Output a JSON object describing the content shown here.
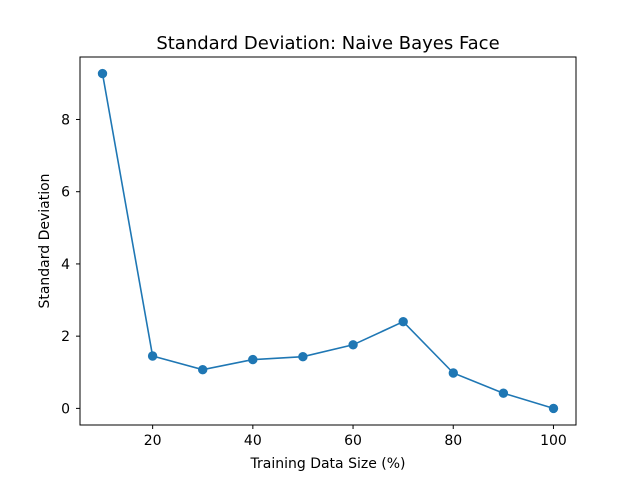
{
  "chart_data": {
    "type": "line",
    "title": "Standard Deviation: Naive Bayes Face",
    "xlabel": "Training Data Size (%)",
    "ylabel": "Standard Deviation",
    "x": [
      10,
      20,
      30,
      40,
      50,
      60,
      70,
      80,
      90,
      100
    ],
    "series": [
      {
        "values": [
          9.27,
          1.45,
          1.07,
          1.35,
          1.43,
          1.76,
          2.4,
          0.98,
          0.42,
          0.0
        ],
        "color": "#1f77b4",
        "marker": "circle"
      }
    ],
    "xlim": [
      5.5,
      104.5
    ],
    "ylim": [
      -0.46,
      9.73
    ],
    "xticks": [
      20,
      40,
      60,
      80,
      100
    ],
    "yticks": [
      0,
      2,
      4,
      6,
      8
    ],
    "xtick_labels": [
      "20",
      "40",
      "60",
      "80",
      "100"
    ],
    "ytick_labels": [
      "0",
      "2",
      "4",
      "6",
      "8"
    ],
    "grid": false,
    "legend": "none"
  }
}
